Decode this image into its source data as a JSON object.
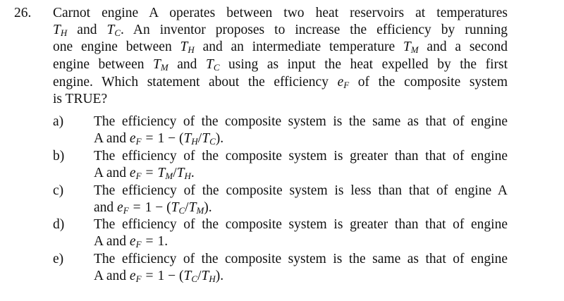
{
  "question": {
    "number": "26.",
    "lines": [
      [
        "Carnot engine A operates between two heat reservoirs at temperatures"
      ],
      [
        {
          "m": "T",
          "s": "H"
        },
        " and ",
        {
          "m": "T",
          "s": "C"
        },
        ".  An inventor proposes to increase the efficiency by running"
      ],
      [
        "one engine between ",
        {
          "m": "T",
          "s": "H"
        },
        " and an intermediate temperature ",
        {
          "m": "T",
          "s": "M"
        },
        " and a second"
      ],
      [
        "engine between ",
        {
          "m": "T",
          "s": "M"
        },
        " and ",
        {
          "m": "T",
          "s": "C"
        },
        " using as input the heat expelled by the first"
      ],
      [
        "engine. Which statement about the efficiency ",
        {
          "m": "e",
          "s": "F"
        },
        " of the composite system"
      ],
      [
        "is TRUE?"
      ]
    ]
  },
  "options": [
    {
      "label": "a)",
      "lines": [
        [
          "The efficiency of the composite system is the same as that of engine"
        ],
        [
          "A and ",
          {
            "m": "e",
            "s": "F"
          },
          {
            "eq": "="
          },
          "1 − (",
          {
            "m": "T",
            "s": "H"
          },
          "/",
          {
            "m": "T",
            "s": "C"
          },
          ")."
        ]
      ]
    },
    {
      "label": "b)",
      "lines": [
        [
          "The efficiency of the composite system is greater than that of engine"
        ],
        [
          "A and ",
          {
            "m": "e",
            "s": "F"
          },
          {
            "eq": "="
          },
          {
            "m": "T",
            "s": "M"
          },
          "/",
          {
            "m": "T",
            "s": "H"
          },
          "."
        ]
      ]
    },
    {
      "label": "c)",
      "lines": [
        [
          "The efficiency of the composite system is less than that of engine A"
        ],
        [
          "and ",
          {
            "m": "e",
            "s": "F"
          },
          {
            "eq": "="
          },
          "1 − (",
          {
            "m": "T",
            "s": "C"
          },
          "/",
          {
            "m": "T",
            "s": "M"
          },
          ")."
        ]
      ]
    },
    {
      "label": "d)",
      "lines": [
        [
          "The efficiency of the composite system is greater than that of engine"
        ],
        [
          "A and ",
          {
            "m": "e",
            "s": "F"
          },
          {
            "eq": "="
          },
          "1."
        ]
      ]
    },
    {
      "label": "e)",
      "lines": [
        [
          "The efficiency of the composite system is the same as that of engine"
        ],
        [
          "A and ",
          {
            "m": "e",
            "s": "F"
          },
          {
            "eq": "="
          },
          "1 − (",
          {
            "m": "T",
            "s": "C"
          },
          "/",
          {
            "m": "T",
            "s": "H"
          },
          ")."
        ]
      ]
    }
  ]
}
